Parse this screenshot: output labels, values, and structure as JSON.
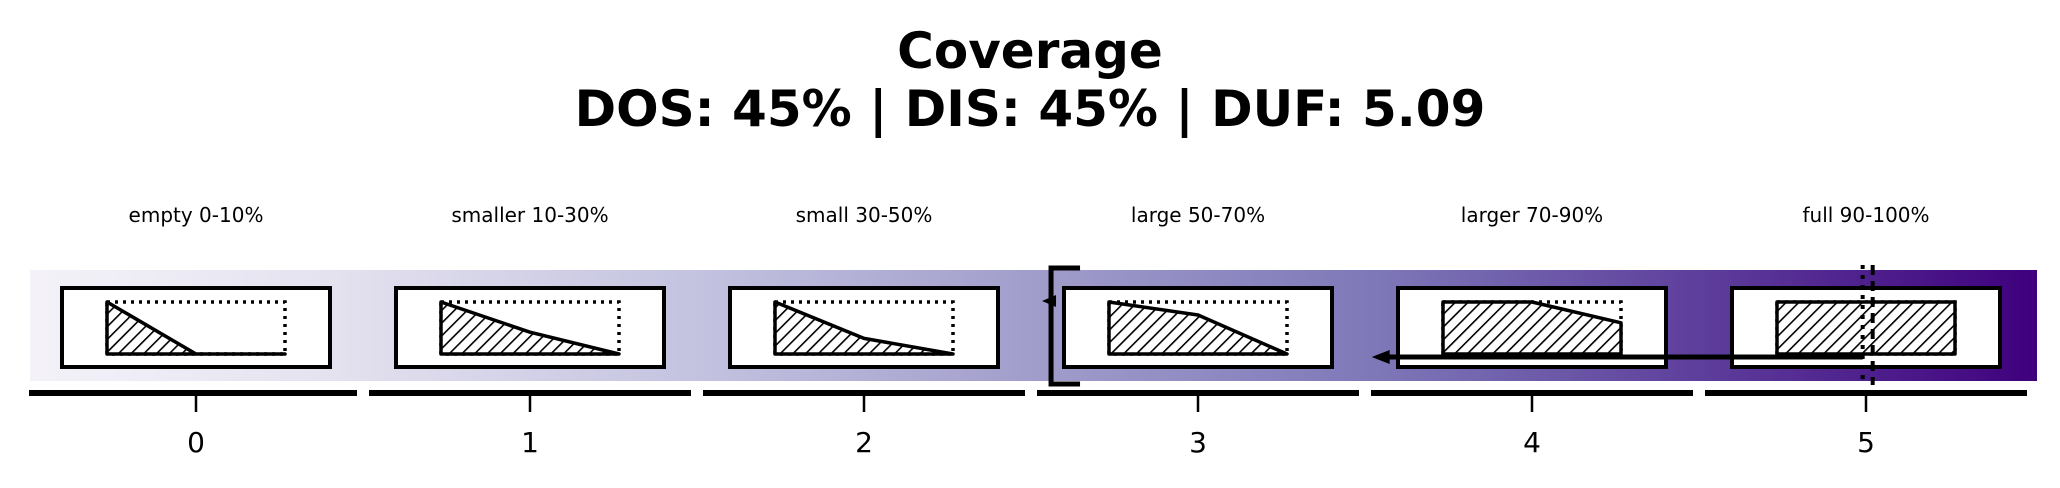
{
  "title": {
    "line1": "Coverage",
    "line2": "DOS: 45% | DIS: 45% | DUF: 5.09"
  },
  "chart_data": {
    "type": "coverage-category-strip",
    "title": "Coverage",
    "subtitle": "DOS: 45% | DIS: 45% | DUF: 5.09",
    "metrics": {
      "DOS_percent": 45,
      "DIS_percent": 45,
      "DUF": 5.09
    },
    "categories": [
      {
        "index": 0,
        "label": "empty 0-10%",
        "profile": [
          1.0,
          0.0,
          0.0
        ],
        "fill": "light-hatch"
      },
      {
        "index": 1,
        "label": "smaller 10-30%",
        "profile": [
          1.0,
          0.42,
          0.0
        ],
        "fill": "hatch"
      },
      {
        "index": 2,
        "label": "small 30-50%",
        "profile": [
          1.0,
          0.3,
          0.0
        ],
        "fill": "hatch"
      },
      {
        "index": 3,
        "label": "large 50-70%",
        "profile": [
          1.0,
          0.75,
          0.0
        ],
        "fill": "hatch"
      },
      {
        "index": 4,
        "label": "larger 70-90%",
        "profile": [
          1.0,
          1.0,
          0.6
        ],
        "fill": "hatch"
      },
      {
        "index": 5,
        "label": "full 90-100%",
        "profile": [
          1.0,
          1.0,
          1.0
        ],
        "fill": "hatch"
      }
    ],
    "xticks": [
      "0",
      "1",
      "2",
      "3",
      "4",
      "5"
    ],
    "xlim": [
      -0.5,
      5.5
    ],
    "colormap": "Purples",
    "colormap_range": [
      0.05,
      1.0
    ],
    "markers": [
      {
        "kind": "bracket",
        "x": 2.56
      },
      {
        "kind": "arrow-left",
        "from": 4.99,
        "to": 3.52
      },
      {
        "kind": "dotted-line",
        "x": 4.99
      },
      {
        "kind": "dashed-line",
        "x": 5.02
      }
    ],
    "colors": {
      "gradient_start": "#f4f2f8",
      "gradient_mid": "#a19dcb",
      "gradient_end": "#3f007d",
      "ink": "#000000"
    },
    "grid": false,
    "legend": "none"
  }
}
